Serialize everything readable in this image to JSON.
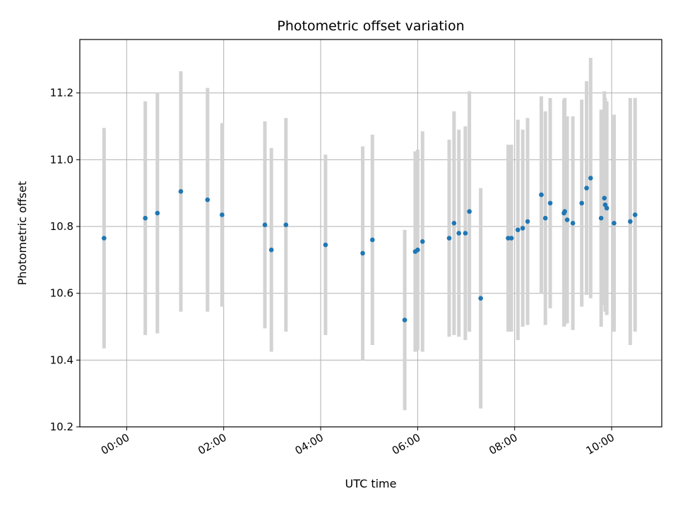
{
  "chart_data": {
    "type": "scatter",
    "title": "Photometric offset variation",
    "xlabel": "UTC time",
    "ylabel": "Photometric offset",
    "x_unit": "UTC time (HH:MM)",
    "xlim": [
      "-00:58",
      "11:02"
    ],
    "ylim": [
      10.2,
      11.36
    ],
    "xticks": [
      "00:00",
      "02:00",
      "04:00",
      "06:00",
      "08:00",
      "10:00"
    ],
    "yticks": [
      "10.2",
      "10.4",
      "10.6",
      "10.8",
      "11.0",
      "11.2"
    ],
    "grid": true,
    "colors": {
      "point": "#1f77b4",
      "errorbar": "#d3d3d3",
      "grid": "#b0b0b0"
    },
    "series": [
      {
        "x": [
          "-00:28",
          "00:23",
          "00:38",
          "01:07",
          "01:40",
          "01:58",
          "02:51",
          "02:59",
          "03:17",
          "04:06",
          "04:52",
          "05:04",
          "05:44",
          "05:57",
          "06:00",
          "06:06",
          "06:39",
          "06:45",
          "06:51",
          "06:59",
          "07:04",
          "07:18",
          "07:52",
          "07:56",
          "08:04",
          "08:10",
          "08:16",
          "08:33",
          "08:38",
          "08:44",
          "09:01",
          "09:02",
          "09:05",
          "09:12",
          "09:23",
          "09:29",
          "09:34",
          "09:47",
          "09:51",
          "09:52",
          "09:54",
          "10:03",
          "10:23",
          "10:29"
        ],
        "y": [
          10.765,
          10.825,
          10.84,
          10.905,
          10.88,
          10.835,
          10.805,
          10.73,
          10.805,
          10.745,
          10.72,
          10.76,
          10.52,
          10.725,
          10.73,
          10.755,
          10.765,
          10.81,
          10.78,
          10.78,
          10.845,
          10.585,
          10.765,
          10.765,
          10.79,
          10.795,
          10.815,
          10.895,
          10.825,
          10.87,
          10.84,
          10.845,
          10.82,
          10.81,
          10.87,
          10.915,
          10.945,
          10.825,
          10.885,
          10.865,
          10.855,
          10.81,
          10.815,
          10.835
        ],
        "error": [
          0.33,
          0.35,
          0.36,
          0.36,
          0.335,
          0.275,
          0.31,
          0.305,
          0.32,
          0.27,
          0.32,
          0.315,
          0.27,
          0.3,
          0.3,
          0.33,
          0.295,
          0.335,
          0.31,
          0.32,
          0.36,
          0.33,
          0.28,
          0.28,
          0.33,
          0.295,
          0.31,
          0.295,
          0.32,
          0.315,
          0.34,
          0.34,
          0.31,
          0.32,
          0.31,
          0.32,
          0.36,
          0.325,
          0.32,
          0.32,
          0.32,
          0.325,
          0.37,
          0.35
        ]
      }
    ]
  }
}
